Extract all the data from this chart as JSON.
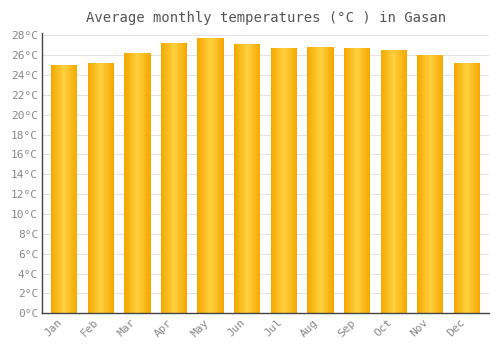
{
  "title": "Average monthly temperatures (°C ) in Gasan",
  "months": [
    "Jan",
    "Feb",
    "Mar",
    "Apr",
    "May",
    "Jun",
    "Jul",
    "Aug",
    "Sep",
    "Oct",
    "Nov",
    "Dec"
  ],
  "values": [
    25.0,
    25.2,
    26.2,
    27.2,
    27.7,
    27.1,
    26.7,
    26.8,
    26.7,
    26.5,
    26.0,
    25.2
  ],
  "bar_color_edge": "#F5A800",
  "bar_color_center": "#FFD040",
  "background_color": "#FFFFFF",
  "plot_bg_color": "#FFFFFF",
  "grid_color": "#DDDDDD",
  "text_color": "#888888",
  "axis_color": "#444444",
  "ylim_min": 0,
  "ylim_max": 28,
  "ytick_step": 2,
  "title_fontsize": 10,
  "tick_fontsize": 8
}
